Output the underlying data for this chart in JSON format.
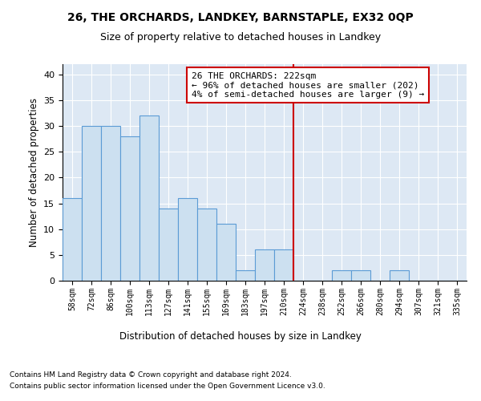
{
  "title1": "26, THE ORCHARDS, LANDKEY, BARNSTAPLE, EX32 0QP",
  "title2": "Size of property relative to detached houses in Landkey",
  "xlabel": "Distribution of detached houses by size in Landkey",
  "ylabel": "Number of detached properties",
  "categories": [
    "58sqm",
    "72sqm",
    "86sqm",
    "100sqm",
    "113sqm",
    "127sqm",
    "141sqm",
    "155sqm",
    "169sqm",
    "183sqm",
    "197sqm",
    "210sqm",
    "224sqm",
    "238sqm",
    "252sqm",
    "266sqm",
    "280sqm",
    "294sqm",
    "307sqm",
    "321sqm",
    "335sqm"
  ],
  "values": [
    16,
    30,
    30,
    28,
    32,
    14,
    16,
    14,
    11,
    2,
    6,
    6,
    0,
    0,
    2,
    2,
    0,
    2,
    0,
    0,
    0
  ],
  "bar_color": "#cce0f0",
  "bar_edge_color": "#5b9bd5",
  "vline_x_index": 11.5,
  "vline_color": "#cc0000",
  "annotation_text": "26 THE ORCHARDS: 222sqm\n← 96% of detached houses are smaller (202)\n4% of semi-detached houses are larger (9) →",
  "annotation_box_color": "#cc0000",
  "ylim": [
    0,
    42
  ],
  "yticks": [
    0,
    5,
    10,
    15,
    20,
    25,
    30,
    35,
    40
  ],
  "background_color": "#dde8f4",
  "footer_line1": "Contains HM Land Registry data © Crown copyright and database right 2024.",
  "footer_line2": "Contains public sector information licensed under the Open Government Licence v3.0."
}
